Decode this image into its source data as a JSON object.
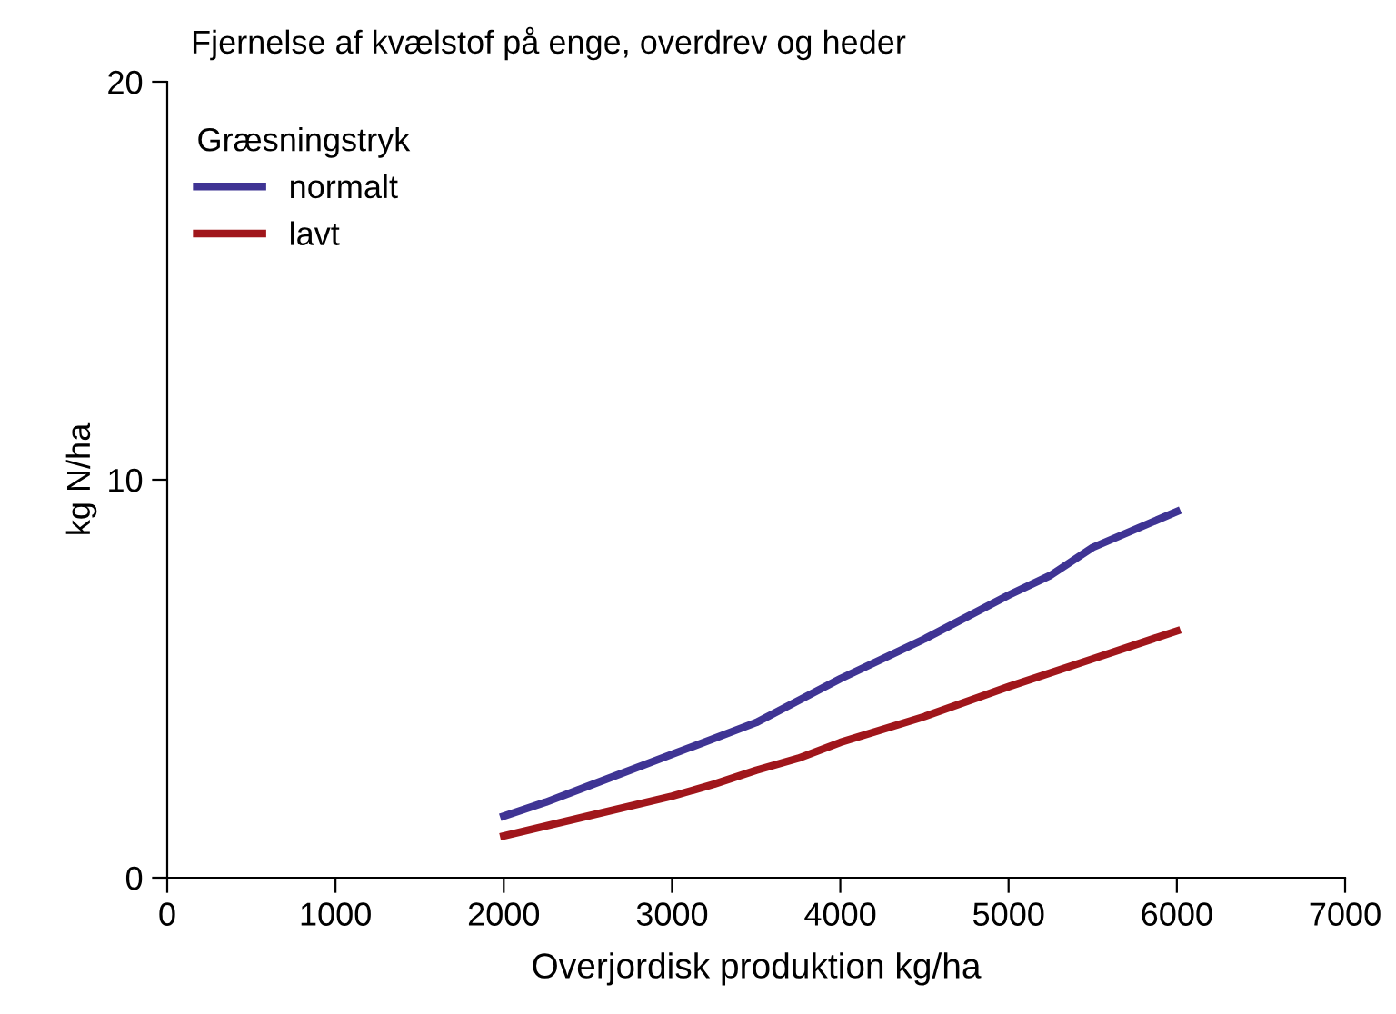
{
  "chart_data": {
    "type": "line",
    "title": "Fjernelse af kvælstof på enge, overdrev og heder",
    "xlabel": "Overjordisk produktion kg/ha",
    "ylabel": "kg N/ha",
    "legend_title": "Græsningstryk",
    "legend": "top left",
    "grid": false,
    "marker": "none",
    "line_style": "solid",
    "xlim": [
      0,
      7000
    ],
    "xticks": [
      0,
      1000,
      2000,
      3000,
      4000,
      5000,
      6000,
      7000
    ],
    "ylim": [
      0,
      20
    ],
    "yticks": [
      0,
      10,
      20
    ],
    "series": [
      {
        "name": "normalt",
        "color": "#3f3494",
        "x": [
          2000,
          2250,
          2500,
          3000,
          3500,
          4000,
          4500,
          5000,
          5250,
          5500,
          6000
        ],
        "values": [
          1.55,
          1.9,
          2.3,
          3.1,
          3.9,
          5.0,
          6.0,
          7.1,
          7.6,
          8.3,
          9.2
        ]
      },
      {
        "name": "lavt",
        "color": "#a0161b",
        "x": [
          2000,
          2500,
          3000,
          3250,
          3500,
          3750,
          4000,
          4500,
          5000,
          5500,
          6000
        ],
        "values": [
          1.05,
          1.55,
          2.05,
          2.35,
          2.7,
          3.0,
          3.4,
          4.05,
          4.8,
          5.5,
          6.2
        ]
      }
    ]
  }
}
